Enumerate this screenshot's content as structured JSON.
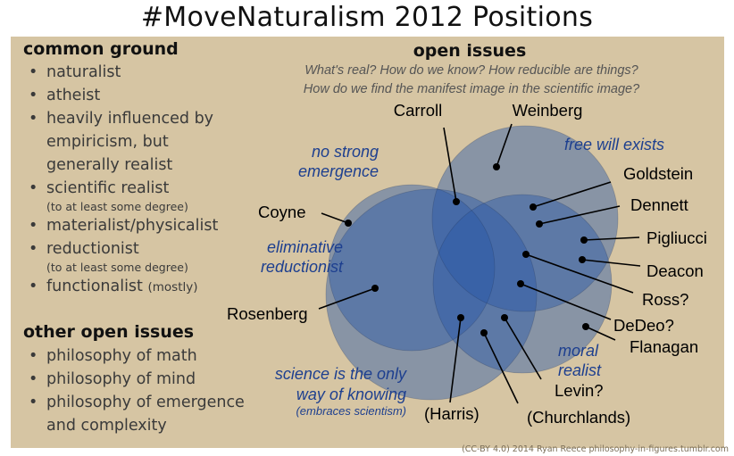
{
  "title": "#MoveNaturalism 2012 Positions",
  "common_ground": {
    "heading": "common ground",
    "items": [
      {
        "text": "naturalist"
      },
      {
        "text": "atheist"
      },
      {
        "text": "heavily influenced by empiricism, but generally realist"
      },
      {
        "text": "scientific realist",
        "sub": "(to at least some degree)"
      },
      {
        "text": "materialist/physicalist"
      },
      {
        "text": "reductionist",
        "sub": "(to at least some degree)"
      },
      {
        "text": "functionalist",
        "inline": "(mostly)"
      }
    ]
  },
  "other_open_issues": {
    "heading": "other open issues",
    "items": [
      "philosophy of math",
      "philosophy of mind",
      "philosophy of emergence and complexity"
    ]
  },
  "open_issues": {
    "heading": "open issues",
    "questions": [
      "What's real? How do we know? How reducible are things?",
      "How do we find the manifest image in the scientific image?"
    ]
  },
  "region_labels": {
    "no_strong_emergence": [
      "no strong",
      "emergence"
    ],
    "free_will": [
      "free will exists"
    ],
    "eliminative": [
      "eliminative",
      "reductionist"
    ],
    "moral_realist": [
      "moral",
      "realist"
    ],
    "scientism": [
      "science is the only",
      "way of knowing"
    ],
    "scientism_sub": "(embraces scientism)"
  },
  "people": [
    "Carroll",
    "Weinberg",
    "Goldstein",
    "Dennett",
    "Pigliucci",
    "Deacon",
    "Ross?",
    "DeDeo?",
    "Flanagan",
    "Levin?",
    "(Churchlands)",
    "(Harris)",
    "Rosenberg",
    "Coyne"
  ],
  "credit": "(CC-BY 4.0)  2014 Ryan Reece  philosophy-in-figures.tumblr.com",
  "colors": {
    "panel": "#d6c5a3",
    "circle": "#2b58a8",
    "label_blue": "#1d3f8f"
  }
}
